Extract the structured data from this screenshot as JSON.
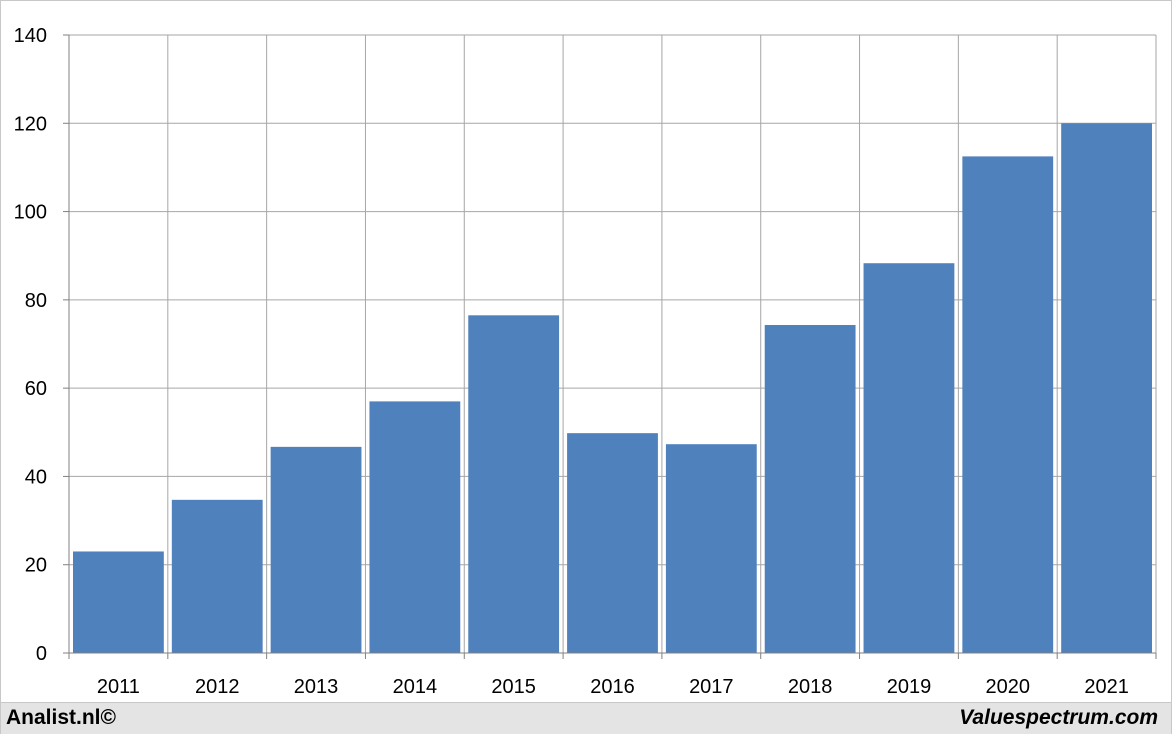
{
  "chart_data": {
    "type": "bar",
    "categories": [
      "2011",
      "2012",
      "2013",
      "2014",
      "2015",
      "2016",
      "2017",
      "2018",
      "2019",
      "2020",
      "2021"
    ],
    "values": [
      23,
      34.7,
      46.7,
      57,
      76.5,
      49.8,
      47.3,
      74.3,
      88.3,
      112.5,
      120
    ],
    "ylim": [
      0,
      140
    ],
    "yticks": [
      0,
      20,
      40,
      60,
      80,
      100,
      120,
      140
    ],
    "grid": true,
    "bar_color": "#4f81bd",
    "grid_color": "#a6a6a6"
  },
  "footer": {
    "left_text": "Analist.nl©",
    "right_text": "Valuespectrum.com"
  }
}
